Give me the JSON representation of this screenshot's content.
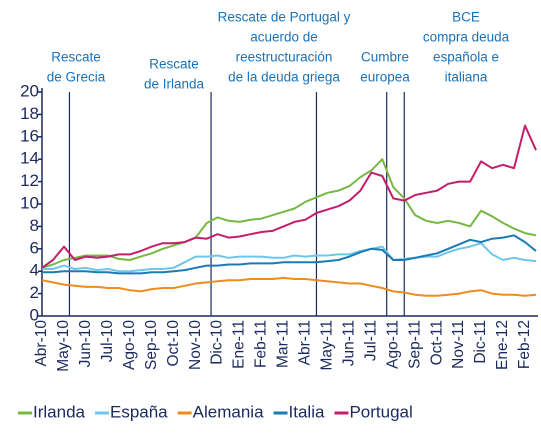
{
  "chart_data": {
    "type": "line",
    "categories": [
      "Abr-10",
      null,
      "May-10",
      null,
      "Jun-10",
      null,
      "Jul-10",
      null,
      "Ago-10",
      null,
      "Sep-10",
      null,
      "Oct-10",
      null,
      "Nov-10",
      null,
      "Dic-10",
      null,
      "Ene-11",
      null,
      "Feb-11",
      null,
      "Mar-11",
      null,
      "Abr-11",
      null,
      "May-11",
      null,
      "Jun-11",
      null,
      "Jul-11",
      null,
      "Ago-11",
      null,
      "Sep-11",
      null,
      "Oct-11",
      null,
      "Nov-11",
      null,
      "Dic-11",
      null,
      "Ene-12",
      null,
      "Feb-12",
      null
    ],
    "series": [
      {
        "name": "Irlanda",
        "color": "#77b843",
        "values": [
          4.3,
          4.6,
          5.0,
          5.2,
          5.4,
          5.4,
          5.4,
          5.1,
          5.0,
          5.3,
          5.6,
          6.0,
          6.3,
          6.6,
          7.0,
          8.3,
          8.8,
          8.5,
          8.4,
          8.6,
          8.7,
          9.0,
          9.3,
          9.6,
          10.2,
          10.6,
          11.0,
          11.2,
          11.6,
          12.4,
          13.0,
          14.0,
          11.5,
          10.5,
          9.0,
          8.5,
          8.3,
          8.5,
          8.3,
          8.0,
          9.4,
          8.9,
          8.3,
          7.8,
          7.4,
          7.2
        ]
      },
      {
        "name": "España",
        "color": "#6ec6ea",
        "values": [
          4.2,
          4.2,
          4.5,
          4.2,
          4.3,
          4.1,
          4.2,
          4.0,
          4.0,
          4.1,
          4.2,
          4.2,
          4.3,
          4.8,
          5.3,
          5.3,
          5.4,
          5.2,
          5.3,
          5.3,
          5.3,
          5.2,
          5.2,
          5.4,
          5.3,
          5.4,
          5.4,
          5.5,
          5.5,
          5.8,
          6.0,
          6.2,
          5.0,
          5.1,
          5.2,
          5.3,
          5.3,
          5.7,
          6.0,
          6.2,
          6.5,
          5.5,
          5.0,
          5.2,
          5.0,
          4.9
        ]
      },
      {
        "name": "Alemania",
        "color": "#f08c1e",
        "values": [
          3.2,
          3.0,
          2.8,
          2.7,
          2.6,
          2.6,
          2.5,
          2.5,
          2.3,
          2.2,
          2.4,
          2.5,
          2.5,
          2.7,
          2.9,
          3.0,
          3.1,
          3.2,
          3.2,
          3.3,
          3.3,
          3.3,
          3.4,
          3.3,
          3.3,
          3.2,
          3.1,
          3.0,
          2.9,
          2.9,
          2.7,
          2.5,
          2.2,
          2.1,
          1.9,
          1.8,
          1.8,
          1.9,
          2.0,
          2.2,
          2.3,
          2.0,
          1.9,
          1.9,
          1.8,
          1.9
        ]
      },
      {
        "name": "Italia",
        "color": "#1c7bb5",
        "values": [
          3.9,
          3.9,
          4.0,
          4.0,
          4.0,
          3.9,
          3.9,
          3.8,
          3.8,
          3.8,
          3.9,
          3.9,
          4.0,
          4.1,
          4.3,
          4.5,
          4.5,
          4.6,
          4.6,
          4.7,
          4.7,
          4.7,
          4.8,
          4.8,
          4.8,
          4.8,
          4.9,
          5.0,
          5.3,
          5.7,
          6.0,
          5.9,
          5.0,
          5.0,
          5.2,
          5.4,
          5.6,
          6.0,
          6.4,
          6.8,
          6.6,
          6.9,
          7.0,
          7.2,
          6.6,
          5.8
        ]
      },
      {
        "name": "Portugal",
        "color": "#c21e6a",
        "values": [
          4.3,
          5.0,
          6.2,
          5.0,
          5.3,
          5.2,
          5.3,
          5.5,
          5.5,
          5.8,
          6.2,
          6.5,
          6.5,
          6.6,
          7.0,
          6.9,
          7.3,
          7.0,
          7.1,
          7.3,
          7.5,
          7.6,
          8.0,
          8.4,
          8.6,
          9.2,
          9.5,
          9.8,
          10.3,
          11.2,
          12.8,
          12.5,
          10.5,
          10.3,
          10.8,
          11.0,
          11.2,
          11.8,
          12.0,
          12.0,
          13.8,
          13.2,
          13.5,
          13.2,
          17.0,
          14.8
        ]
      }
    ],
    "ylim": [
      0,
      20
    ],
    "yticks": [
      0,
      2,
      4,
      6,
      8,
      10,
      12,
      14,
      16,
      18,
      20
    ],
    "annotations": [
      {
        "x": 2.5,
        "text": [
          "Rescate",
          "de Grecia"
        ]
      },
      {
        "x": 15.4,
        "text": [
          "Rescate",
          "de Irlanda"
        ]
      },
      {
        "x": 25,
        "text": [
          "Rescate de Portugal y",
          "acuerdo de",
          "reestructuración",
          "de la deuda griega"
        ]
      },
      {
        "x": 31.4,
        "text": [
          "Cumbre",
          "europea"
        ]
      },
      {
        "x": 33,
        "text": [
          "BCE",
          "compra deuda",
          "española e",
          "italiana"
        ]
      }
    ]
  }
}
